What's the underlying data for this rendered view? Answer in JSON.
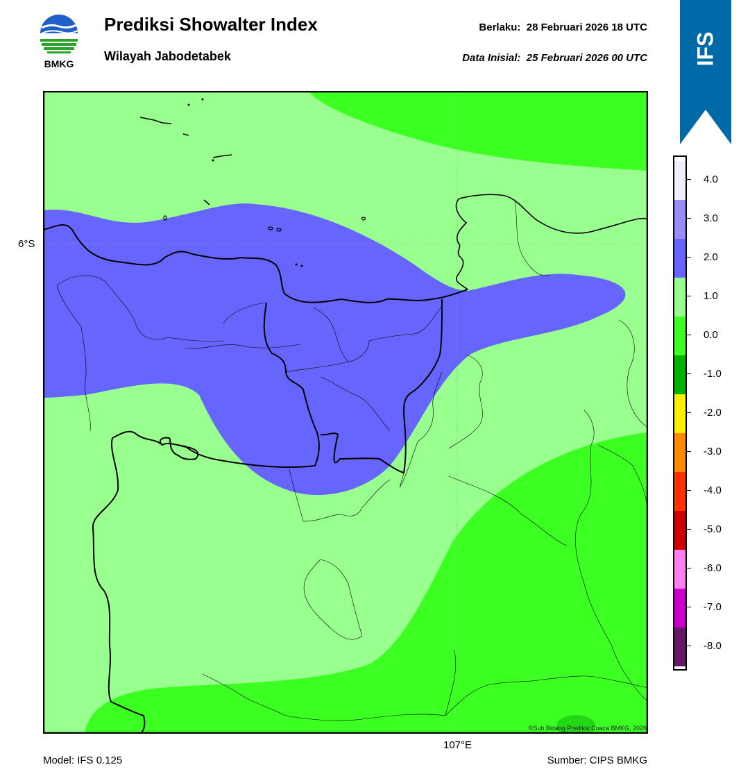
{
  "header": {
    "title": "Prediksi Showalter Index",
    "region": "Wilayah Jabodetabek",
    "valid_label": "Berlaku:  28 Februari 2026 18 UTC",
    "init_label": "Data Inisial:  25 Februari 2026 00 UTC",
    "logo_text": "BMKG"
  },
  "ribbon": {
    "text": "IFS",
    "color": "#0069a8"
  },
  "axes": {
    "lat_label": "6°S",
    "lon_label": "107°E"
  },
  "footer": {
    "model": "Model: IFS 0.125",
    "source": "Sumber: CIPS BMKG",
    "copyright": "©Sub Bidang Prediksi Cuaca BMKG, 2026"
  },
  "legend": {
    "bins": [
      {
        "color": "#eeeeff"
      },
      {
        "color": "#9a8cf5"
      },
      {
        "color": "#6666ff"
      },
      {
        "color": "#99ff8f"
      },
      {
        "color": "#3cff22"
      },
      {
        "color": "#00b300"
      },
      {
        "color": "#ffee00"
      },
      {
        "color": "#ff8c00"
      },
      {
        "color": "#ff3300"
      },
      {
        "color": "#cc0000"
      },
      {
        "color": "#ff80f0"
      },
      {
        "color": "#cc00cc"
      },
      {
        "color": "#661a66"
      }
    ],
    "labels": [
      "4.0",
      "3.0",
      "2.0",
      "1.0",
      "0.0",
      "-1.0",
      "-2.0",
      "-3.0",
      "-4.0",
      "-5.0",
      "-6.0",
      "-7.0",
      "-8.0"
    ]
  },
  "map_colors": {
    "light_green": "#99ff8f",
    "green": "#3cff22",
    "dark_green": "#22d814",
    "blue": "#6666ff"
  }
}
